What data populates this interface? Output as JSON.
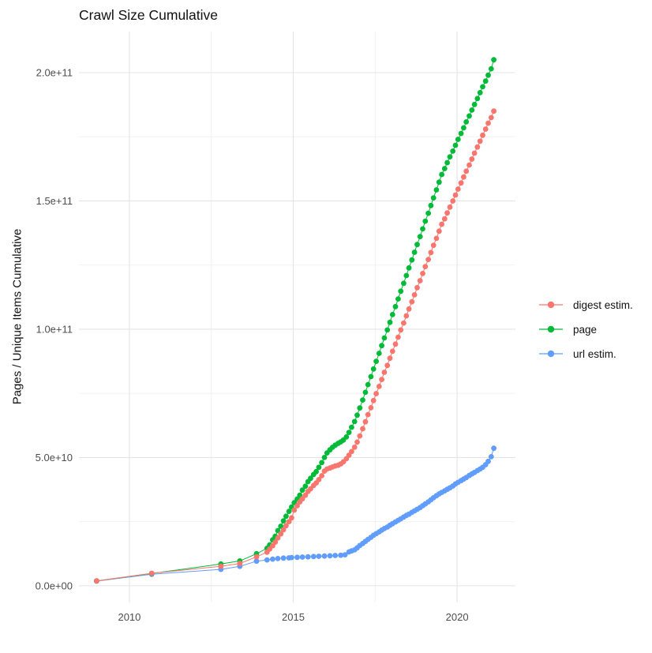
{
  "title": "Crawl Size Cumulative",
  "legend": {
    "items": [
      {
        "label": "digest estim.",
        "color": "#F8766D"
      },
      {
        "label": "page",
        "color": "#00BA38"
      },
      {
        "label": "url estim.",
        "color": "#619CFF"
      }
    ]
  },
  "axis_text_color": "#4D4D4D",
  "grid_major_color": "#E4E4E4",
  "grid_minor_color": "#F0F0F0",
  "chart_data": {
    "type": "line",
    "title": "Crawl Size Cumulative",
    "xlabel": "",
    "ylabel": "Pages / Unique Items Cumulative",
    "grid": true,
    "legend_position": "right",
    "x_domain": [
      2008.46,
      2021.78
    ],
    "y_domain_billions": [
      -6.5,
      216
    ],
    "x_major_ticks": [
      {
        "value": 2010,
        "label": "2010"
      },
      {
        "value": 2015,
        "label": "2015"
      },
      {
        "value": 2020,
        "label": "2020"
      }
    ],
    "x_minor_ticks": [
      2012.5,
      2017.5
    ],
    "y_major_ticks": [
      {
        "value_billions": 0,
        "label": "0.0e+00"
      },
      {
        "value_billions": 50,
        "label": "5.0e+10"
      },
      {
        "value_billions": 100,
        "label": "1.0e+11"
      },
      {
        "value_billions": 150,
        "label": "1.5e+11"
      },
      {
        "value_billions": 200,
        "label": "2.0e+11"
      }
    ],
    "y_minor_ticks_billions": [
      25,
      75,
      125,
      175
    ],
    "series": [
      {
        "name": "digest estim.",
        "color": "#F8766D",
        "points_year_billions": [
          [
            2009.0,
            1.9
          ],
          [
            2010.68,
            4.9
          ],
          [
            2012.79,
            7.6
          ],
          [
            2013.37,
            8.7
          ],
          [
            2013.88,
            11.3
          ],
          [
            2014.2,
            13.1
          ],
          [
            2014.28,
            14.3
          ],
          [
            2014.37,
            15.6
          ],
          [
            2014.45,
            17.0
          ],
          [
            2014.53,
            18.6
          ],
          [
            2014.62,
            20.2
          ],
          [
            2014.7,
            21.8
          ],
          [
            2014.78,
            23.4
          ],
          [
            2014.87,
            25.0
          ],
          [
            2014.95,
            26.5
          ],
          [
            2015.03,
            29.5
          ],
          [
            2015.12,
            31.2
          ],
          [
            2015.2,
            32.7
          ],
          [
            2015.28,
            33.9
          ],
          [
            2015.37,
            35.3
          ],
          [
            2015.45,
            36.8
          ],
          [
            2015.53,
            37.8
          ],
          [
            2015.62,
            39.1
          ],
          [
            2015.7,
            40.1
          ],
          [
            2015.78,
            41.4
          ],
          [
            2015.87,
            42.9
          ],
          [
            2015.95,
            44.7
          ],
          [
            2016.03,
            45.5
          ],
          [
            2016.12,
            45.9
          ],
          [
            2016.2,
            46.3
          ],
          [
            2016.28,
            46.7
          ],
          [
            2016.37,
            47.0
          ],
          [
            2016.45,
            47.5
          ],
          [
            2016.53,
            48.3
          ],
          [
            2016.62,
            49.5
          ],
          [
            2016.7,
            50.9
          ],
          [
            2016.78,
            52.3
          ],
          [
            2016.87,
            54.0
          ],
          [
            2016.95,
            56.0
          ],
          [
            2017.03,
            58.4
          ],
          [
            2017.12,
            61.2
          ],
          [
            2017.2,
            63.9
          ],
          [
            2017.28,
            66.7
          ],
          [
            2017.37,
            69.4
          ],
          [
            2017.45,
            72.2
          ],
          [
            2017.53,
            74.9
          ],
          [
            2017.62,
            77.7
          ],
          [
            2017.7,
            80.4
          ],
          [
            2017.78,
            83.2
          ],
          [
            2017.87,
            85.9
          ],
          [
            2017.95,
            88.7
          ],
          [
            2018.03,
            91.4
          ],
          [
            2018.12,
            94.2
          ],
          [
            2018.2,
            96.9
          ],
          [
            2018.28,
            99.7
          ],
          [
            2018.37,
            102.4
          ],
          [
            2018.45,
            105.2
          ],
          [
            2018.53,
            107.9
          ],
          [
            2018.62,
            110.7
          ],
          [
            2018.7,
            113.4
          ],
          [
            2018.78,
            116.2
          ],
          [
            2018.87,
            118.9
          ],
          [
            2018.95,
            121.7
          ],
          [
            2019.03,
            124.4
          ],
          [
            2019.12,
            127.2
          ],
          [
            2019.2,
            129.9
          ],
          [
            2019.28,
            132.7
          ],
          [
            2019.37,
            135.4
          ],
          [
            2019.45,
            138.2
          ],
          [
            2019.53,
            140.9
          ],
          [
            2019.62,
            143.0
          ],
          [
            2019.7,
            145.3
          ],
          [
            2019.78,
            147.6
          ],
          [
            2019.87,
            150.0
          ],
          [
            2019.95,
            152.3
          ],
          [
            2020.03,
            154.6
          ],
          [
            2020.12,
            157.0
          ],
          [
            2020.2,
            159.3
          ],
          [
            2020.28,
            161.6
          ],
          [
            2020.37,
            164.0
          ],
          [
            2020.45,
            166.3
          ],
          [
            2020.53,
            168.6
          ],
          [
            2020.62,
            171.0
          ],
          [
            2020.7,
            173.3
          ],
          [
            2020.78,
            175.6
          ],
          [
            2020.87,
            178.0
          ],
          [
            2020.95,
            180.3
          ],
          [
            2021.04,
            182.5
          ],
          [
            2021.12,
            185.0
          ]
        ]
      },
      {
        "name": "page",
        "color": "#00BA38",
        "points_year_billions": [
          [
            2009.0,
            1.9
          ],
          [
            2010.68,
            4.8
          ],
          [
            2012.79,
            8.5
          ],
          [
            2013.37,
            9.7
          ],
          [
            2013.88,
            12.5
          ],
          [
            2014.2,
            14.6
          ],
          [
            2014.28,
            15.9
          ],
          [
            2014.37,
            17.9
          ],
          [
            2014.45,
            19.3
          ],
          [
            2014.53,
            21.5
          ],
          [
            2014.62,
            23.2
          ],
          [
            2014.7,
            25.3
          ],
          [
            2014.78,
            27.1
          ],
          [
            2014.87,
            29.0
          ],
          [
            2014.95,
            30.7
          ],
          [
            2015.03,
            32.4
          ],
          [
            2015.12,
            33.8
          ],
          [
            2015.2,
            35.3
          ],
          [
            2015.28,
            37.3
          ],
          [
            2015.37,
            38.8
          ],
          [
            2015.45,
            40.6
          ],
          [
            2015.53,
            41.9
          ],
          [
            2015.62,
            43.4
          ],
          [
            2015.7,
            44.5
          ],
          [
            2015.78,
            46.2
          ],
          [
            2015.87,
            48.0
          ],
          [
            2015.95,
            50.0
          ],
          [
            2016.03,
            51.8
          ],
          [
            2016.12,
            53.0
          ],
          [
            2016.2,
            54.0
          ],
          [
            2016.28,
            54.8
          ],
          [
            2016.37,
            55.5
          ],
          [
            2016.45,
            56.1
          ],
          [
            2016.53,
            56.8
          ],
          [
            2016.62,
            58.0
          ],
          [
            2016.7,
            59.8
          ],
          [
            2016.78,
            61.8
          ],
          [
            2016.87,
            64.0
          ],
          [
            2016.95,
            66.5
          ],
          [
            2017.03,
            69.3
          ],
          [
            2017.12,
            72.4
          ],
          [
            2017.2,
            75.4
          ],
          [
            2017.28,
            78.4
          ],
          [
            2017.37,
            81.5
          ],
          [
            2017.45,
            84.5
          ],
          [
            2017.53,
            87.5
          ],
          [
            2017.62,
            90.6
          ],
          [
            2017.7,
            93.6
          ],
          [
            2017.78,
            96.6
          ],
          [
            2017.87,
            99.7
          ],
          [
            2017.95,
            102.7
          ],
          [
            2018.03,
            105.7
          ],
          [
            2018.12,
            108.8
          ],
          [
            2018.2,
            111.8
          ],
          [
            2018.28,
            114.8
          ],
          [
            2018.37,
            117.9
          ],
          [
            2018.45,
            120.9
          ],
          [
            2018.53,
            123.9
          ],
          [
            2018.62,
            127.0
          ],
          [
            2018.7,
            130.0
          ],
          [
            2018.78,
            133.0
          ],
          [
            2018.87,
            136.1
          ],
          [
            2018.95,
            139.1
          ],
          [
            2019.03,
            142.1
          ],
          [
            2019.12,
            145.2
          ],
          [
            2019.2,
            148.2
          ],
          [
            2019.28,
            151.2
          ],
          [
            2019.37,
            154.3
          ],
          [
            2019.45,
            157.3
          ],
          [
            2019.53,
            160.3
          ],
          [
            2019.62,
            162.6
          ],
          [
            2019.7,
            164.9
          ],
          [
            2019.78,
            167.2
          ],
          [
            2019.87,
            169.4
          ],
          [
            2019.95,
            171.7
          ],
          [
            2020.03,
            174.0
          ],
          [
            2020.12,
            176.3
          ],
          [
            2020.2,
            178.5
          ],
          [
            2020.28,
            180.8
          ],
          [
            2020.37,
            183.1
          ],
          [
            2020.45,
            185.4
          ],
          [
            2020.53,
            187.6
          ],
          [
            2020.62,
            189.9
          ],
          [
            2020.7,
            192.2
          ],
          [
            2020.78,
            194.5
          ],
          [
            2020.87,
            196.7
          ],
          [
            2020.95,
            199.0
          ],
          [
            2021.04,
            201.5
          ],
          [
            2021.12,
            205.0
          ]
        ]
      },
      {
        "name": "url estim.",
        "color": "#619CFF",
        "points_year_billions": [
          [
            2009.0,
            1.8
          ],
          [
            2010.68,
            4.5
          ],
          [
            2012.79,
            6.4
          ],
          [
            2013.37,
            7.6
          ],
          [
            2013.88,
            9.6
          ],
          [
            2014.2,
            10.1
          ],
          [
            2014.37,
            10.4
          ],
          [
            2014.53,
            10.6
          ],
          [
            2014.7,
            10.8
          ],
          [
            2014.87,
            10.9
          ],
          [
            2014.95,
            11.0
          ],
          [
            2015.12,
            11.1
          ],
          [
            2015.28,
            11.2
          ],
          [
            2015.45,
            11.3
          ],
          [
            2015.62,
            11.4
          ],
          [
            2015.78,
            11.5
          ],
          [
            2015.95,
            11.6
          ],
          [
            2016.12,
            11.7
          ],
          [
            2016.28,
            11.8
          ],
          [
            2016.45,
            11.9
          ],
          [
            2016.58,
            12.1
          ],
          [
            2016.7,
            13.2
          ],
          [
            2016.78,
            13.6
          ],
          [
            2016.87,
            14.0
          ],
          [
            2016.95,
            14.8
          ],
          [
            2017.03,
            15.7
          ],
          [
            2017.12,
            16.5
          ],
          [
            2017.2,
            17.3
          ],
          [
            2017.28,
            18.1
          ],
          [
            2017.37,
            18.9
          ],
          [
            2017.45,
            19.7
          ],
          [
            2017.53,
            20.3
          ],
          [
            2017.62,
            21.0
          ],
          [
            2017.7,
            21.7
          ],
          [
            2017.78,
            22.3
          ],
          [
            2017.87,
            22.9
          ],
          [
            2017.95,
            23.6
          ],
          [
            2018.03,
            24.2
          ],
          [
            2018.12,
            24.9
          ],
          [
            2018.2,
            25.5
          ],
          [
            2018.28,
            26.1
          ],
          [
            2018.37,
            26.8
          ],
          [
            2018.45,
            27.4
          ],
          [
            2018.53,
            27.9
          ],
          [
            2018.62,
            28.6
          ],
          [
            2018.7,
            29.2
          ],
          [
            2018.78,
            29.8
          ],
          [
            2018.87,
            30.5
          ],
          [
            2018.95,
            31.2
          ],
          [
            2019.03,
            31.9
          ],
          [
            2019.12,
            32.7
          ],
          [
            2019.2,
            33.5
          ],
          [
            2019.28,
            34.3
          ],
          [
            2019.37,
            35.1
          ],
          [
            2019.45,
            35.8
          ],
          [
            2019.53,
            36.4
          ],
          [
            2019.62,
            37.0
          ],
          [
            2019.7,
            37.6
          ],
          [
            2019.78,
            38.2
          ],
          [
            2019.87,
            38.9
          ],
          [
            2019.95,
            39.7
          ],
          [
            2020.03,
            40.3
          ],
          [
            2020.12,
            41.0
          ],
          [
            2020.2,
            41.6
          ],
          [
            2020.28,
            42.2
          ],
          [
            2020.37,
            43.0
          ],
          [
            2020.45,
            43.6
          ],
          [
            2020.53,
            44.2
          ],
          [
            2020.62,
            44.9
          ],
          [
            2020.7,
            45.5
          ],
          [
            2020.78,
            46.2
          ],
          [
            2020.87,
            47.2
          ],
          [
            2020.95,
            48.5
          ],
          [
            2021.04,
            50.3
          ],
          [
            2021.12,
            53.6
          ]
        ]
      }
    ]
  }
}
